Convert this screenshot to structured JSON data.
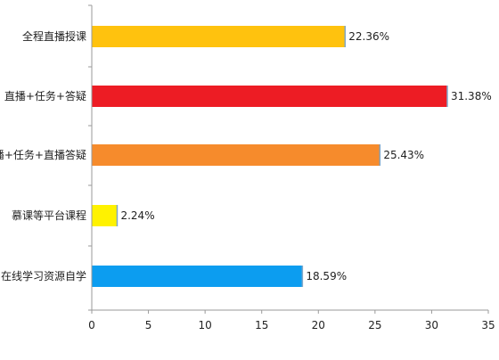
{
  "chart_data": {
    "type": "bar",
    "orientation": "horizontal",
    "categories": [
      "全程直播授课",
      "直播+任务+答疑",
      "录播+任务+直播答疑",
      "慕课等平台课程",
      "利用在线学习资源自学"
    ],
    "values": [
      22.36,
      31.38,
      25.43,
      2.24,
      18.59
    ],
    "value_labels": [
      "22.36%",
      "31.38%",
      "25.43%",
      "2.24%",
      "18.59%"
    ],
    "bar_colors": [
      "#FFC20E",
      "#ED1C24",
      "#F68B2C",
      "#FFF200",
      "#0C9DF0"
    ],
    "xlim": [
      0,
      35
    ],
    "xticks": [
      0,
      5,
      10,
      15,
      20,
      25,
      30,
      35
    ],
    "title": "",
    "xlabel": "",
    "ylabel": "",
    "grid": false,
    "legend": "none"
  }
}
